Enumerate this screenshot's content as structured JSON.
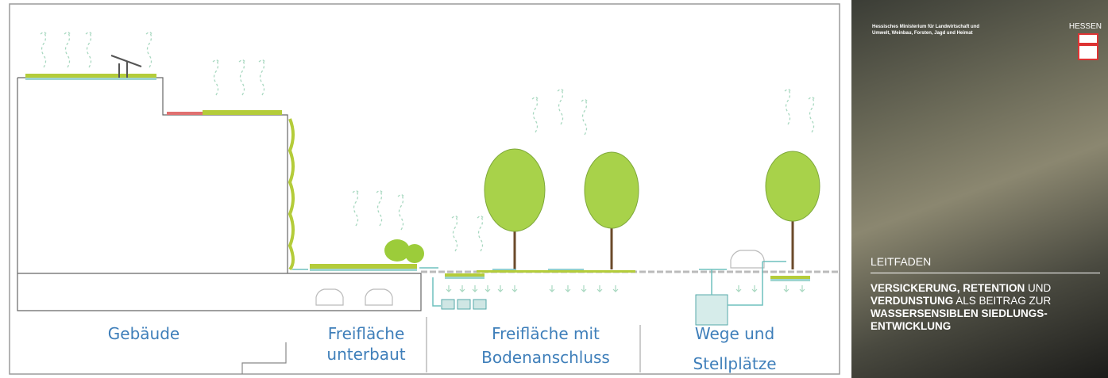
{
  "diagram": {
    "zones": [
      [
        "Gebäude"
      ],
      [
        "Freifläche",
        "unterbaut"
      ],
      [
        "Freifläche mit",
        "Bodenanschluss"
      ],
      [
        "Wege und",
        "Stellplätze"
      ]
    ]
  },
  "cover": {
    "publisher": [
      "Hessisches Ministerium für Landwirtschaft und",
      "Umwelt, Weinbau, Forsten, Jagd und Heimat"
    ],
    "state": "HESSEN",
    "kicker": "LEITFADEN",
    "title": [
      [
        "VERSICKERUNG, RETENTION",
        " UND"
      ],
      [
        "VERDUNSTUNG",
        " ALS BEITRAG ZUR"
      ],
      [
        "WASSERSENSIBLEN SIEDLUNGS-"
      ],
      [
        "ENTWICKLUNG"
      ]
    ]
  }
}
